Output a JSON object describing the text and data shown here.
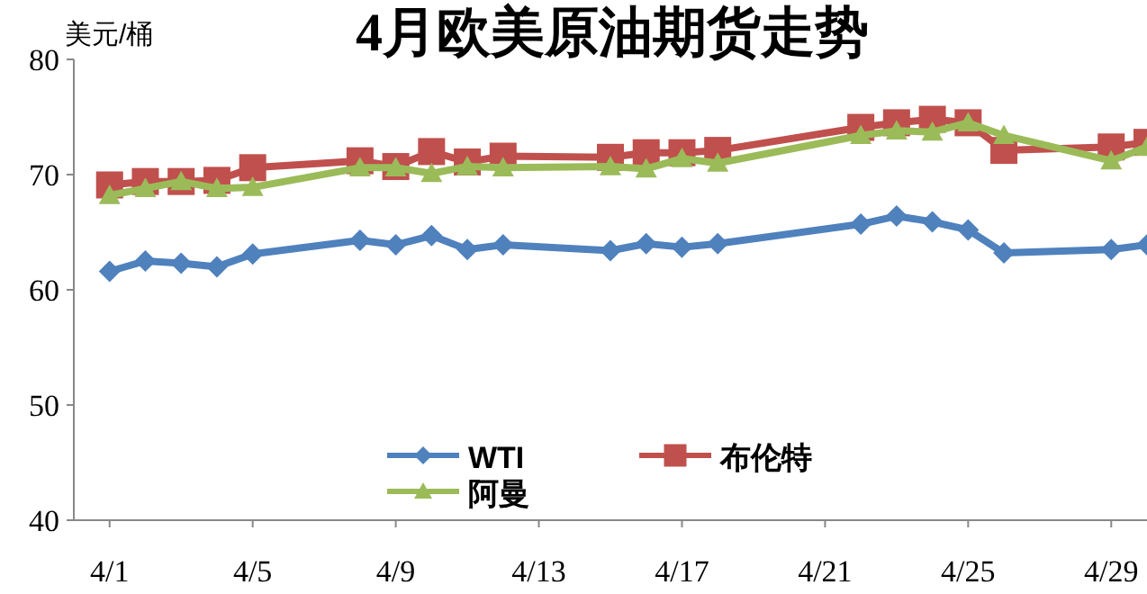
{
  "chart_data": {
    "type": "line",
    "title": "4月欧美原油期货走势",
    "ylabel": "美元/桶",
    "x": [
      "--04-01",
      "--04-02",
      "--04-03",
      "--04-04",
      "--04-05",
      "--04-08",
      "--04-09",
      "--04-10",
      "--04-11",
      "--04-12",
      "--04-15",
      "--04-16",
      "--04-17",
      "--04-18",
      "--04-22",
      "--04-23",
      "--04-24",
      "--04-25",
      "--04-26",
      "--04-29",
      "--04-30"
    ],
    "series": [
      {
        "name": "WTI",
        "color": "#4f81bd",
        "marker": "diamond",
        "values": [
          61.6,
          62.5,
          62.3,
          62.0,
          63.1,
          64.3,
          63.9,
          64.7,
          63.5,
          63.9,
          63.4,
          64.0,
          63.7,
          64.0,
          65.7,
          66.4,
          65.9,
          65.2,
          63.2,
          63.5,
          63.9
        ]
      },
      {
        "name": "布伦特",
        "color": "#c0504d",
        "marker": "square",
        "values": [
          69.1,
          69.4,
          69.4,
          69.5,
          70.6,
          71.2,
          70.7,
          72.0,
          71.1,
          71.6,
          71.5,
          71.9,
          71.9,
          72.1,
          74.1,
          74.5,
          74.8,
          74.5,
          72.1,
          72.4,
          72.8
        ]
      },
      {
        "name": "阿曼",
        "color": "#9bbb59",
        "marker": "triangle",
        "values": [
          68.2,
          68.8,
          69.4,
          68.8,
          68.9,
          70.6,
          70.6,
          70.1,
          70.7,
          70.6,
          70.7,
          70.5,
          71.4,
          71.0,
          73.4,
          73.8,
          73.7,
          74.5,
          73.4,
          71.2,
          72.4
        ]
      }
    ],
    "xlim": [
      "--03-31",
      "--04-30"
    ],
    "xticks": [
      {
        "value": "--04-01",
        "label": "4/1"
      },
      {
        "value": "--04-05",
        "label": "4/5"
      },
      {
        "value": "--04-09",
        "label": "4/9"
      },
      {
        "value": "--04-13",
        "label": "4/13"
      },
      {
        "value": "--04-17",
        "label": "4/17"
      },
      {
        "value": "--04-21",
        "label": "4/21"
      },
      {
        "value": "--04-25",
        "label": "4/25"
      },
      {
        "value": "--04-29",
        "label": "4/29"
      }
    ],
    "ylim": [
      40,
      80
    ],
    "yticks": [
      40,
      50,
      60,
      70,
      80
    ],
    "legend": "bottom",
    "line_style": "solid"
  }
}
